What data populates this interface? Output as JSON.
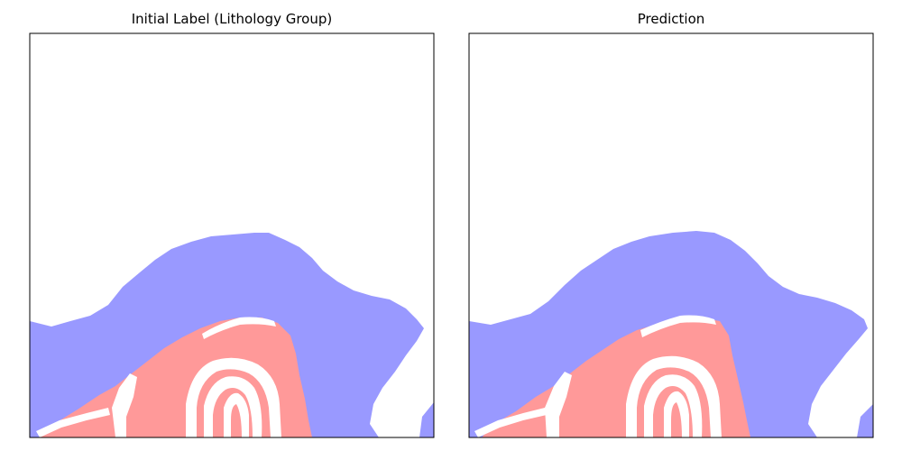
{
  "figure": {
    "panels": [
      {
        "title": "Initial Label (Lithology Group)"
      },
      {
        "title": "Prediction"
      }
    ]
  },
  "colors": {
    "background": "#ffffff",
    "lithology_blue": "#9999ff",
    "lithology_red": "#ff9999",
    "axes_edge": "#000000"
  },
  "chart_data": [
    {
      "type": "heatmap",
      "title": "Initial Label (Lithology Group)",
      "xlabel": "",
      "ylabel": "",
      "ticks": "none",
      "classes": [
        {
          "color": "#ffffff"
        },
        {
          "color": "#9999ff"
        },
        {
          "color": "#ff9999"
        }
      ]
    },
    {
      "type": "heatmap",
      "title": "Prediction",
      "xlabel": "",
      "ylabel": "",
      "ticks": "none",
      "classes": [
        {
          "color": "#ffffff"
        },
        {
          "color": "#9999ff"
        },
        {
          "color": "#ff9999"
        }
      ]
    }
  ]
}
